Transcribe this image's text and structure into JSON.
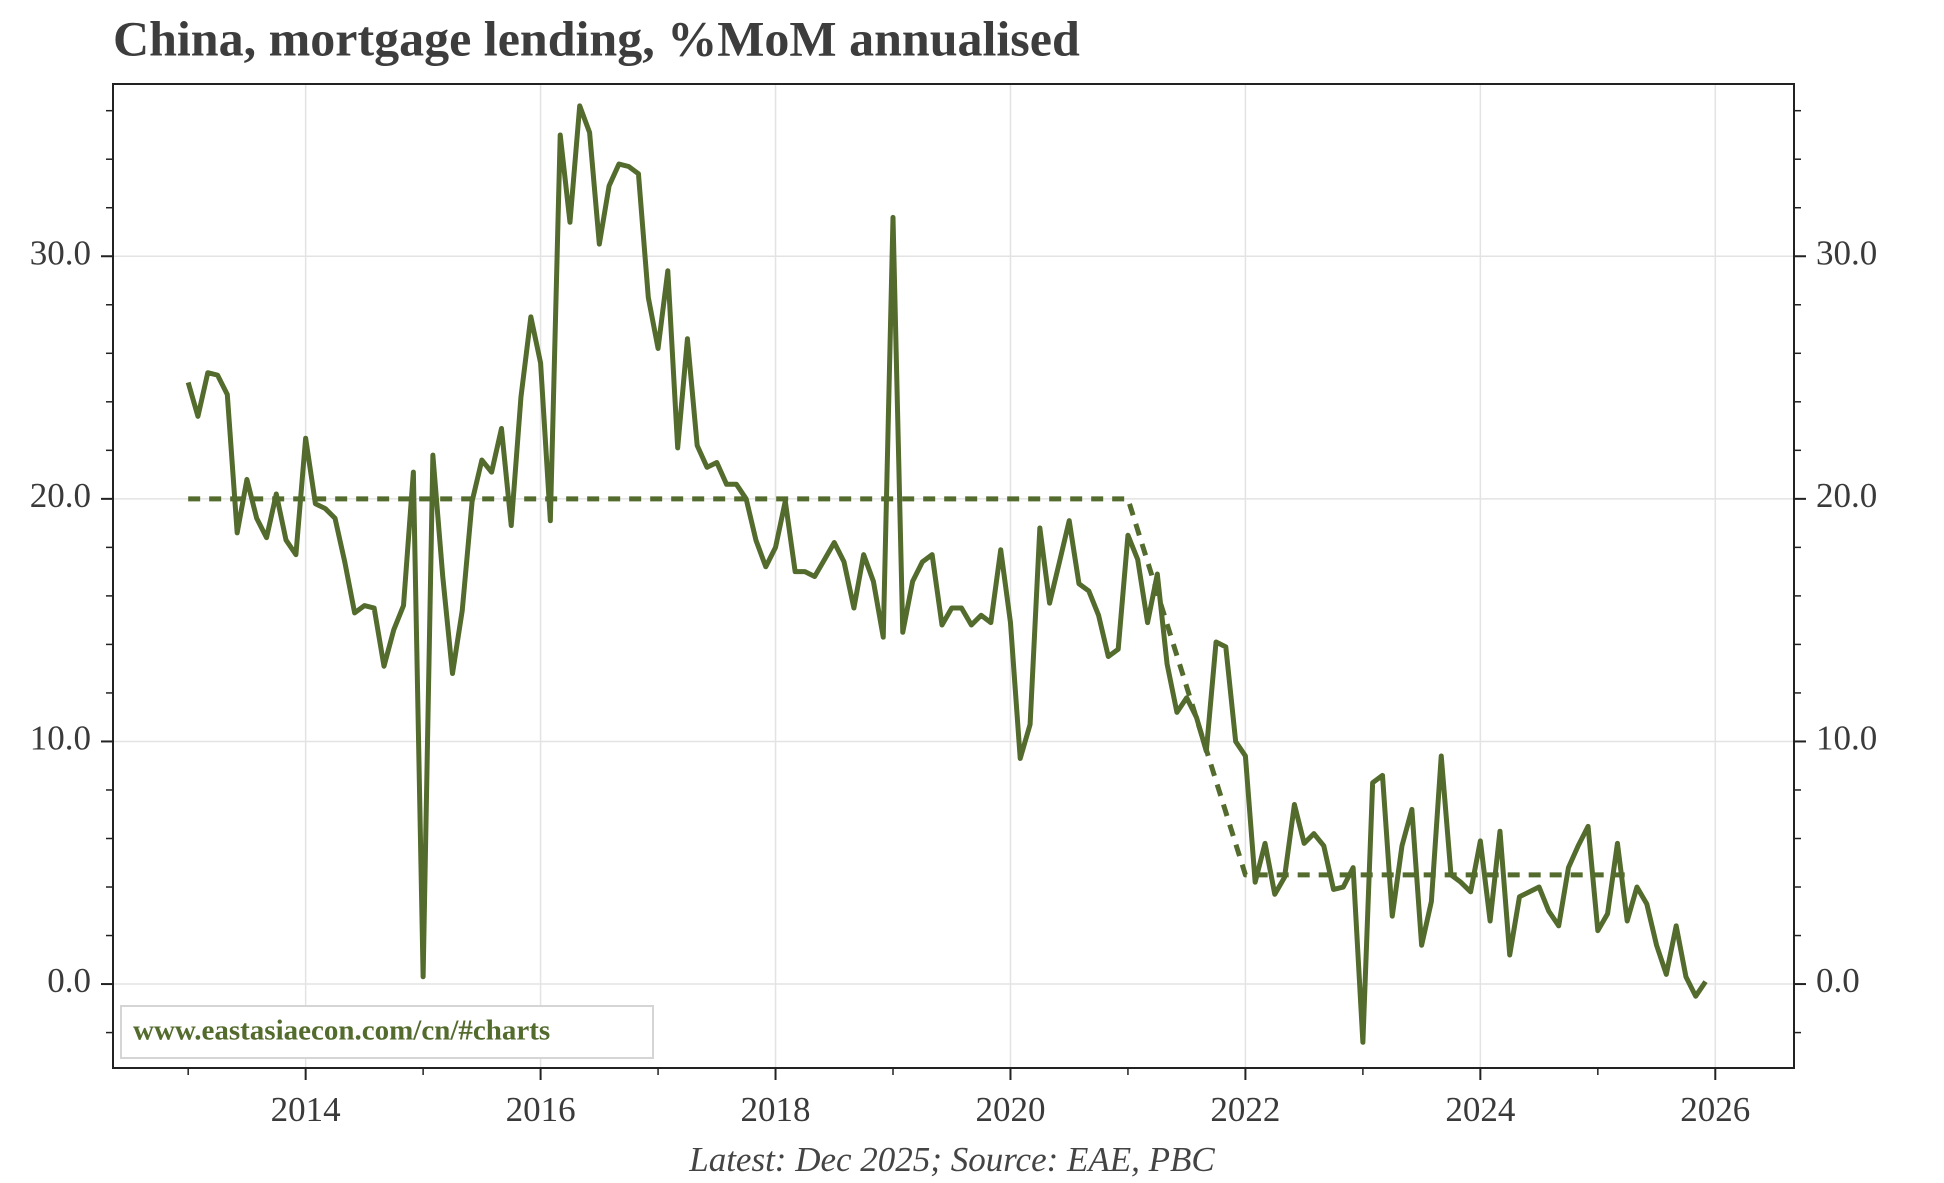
{
  "chart_data": {
    "type": "line",
    "title": "China, mortgage lending, %MoM annualised",
    "footer": "Latest: Dec 2025; Source: EAE, PBC",
    "watermark": "www.eastasiaecon.com/cn/#charts",
    "x": [
      2013,
      2013.083,
      2013.167,
      2013.25,
      2013.333,
      2013.417,
      2013.5,
      2013.583,
      2013.667,
      2013.75,
      2013.833,
      2013.917,
      2014,
      2014.083,
      2014.167,
      2014.25,
      2014.333,
      2014.417,
      2014.5,
      2014.583,
      2014.667,
      2014.75,
      2014.833,
      2014.917,
      2015,
      2015.083,
      2015.167,
      2015.25,
      2015.333,
      2015.417,
      2015.5,
      2015.583,
      2015.667,
      2015.75,
      2015.833,
      2015.917,
      2016,
      2016.083,
      2016.167,
      2016.25,
      2016.333,
      2016.417,
      2016.5,
      2016.583,
      2016.667,
      2016.75,
      2016.833,
      2016.917,
      2017,
      2017.083,
      2017.167,
      2017.25,
      2017.333,
      2017.417,
      2017.5,
      2017.583,
      2017.667,
      2017.75,
      2017.833,
      2017.917,
      2018,
      2018.083,
      2018.167,
      2018.25,
      2018.333,
      2018.417,
      2018.5,
      2018.583,
      2018.667,
      2018.75,
      2018.833,
      2018.917,
      2019,
      2019.083,
      2019.167,
      2019.25,
      2019.333,
      2019.417,
      2019.5,
      2019.583,
      2019.667,
      2019.75,
      2019.833,
      2019.917,
      2020,
      2020.083,
      2020.167,
      2020.25,
      2020.333,
      2020.417,
      2020.5,
      2020.583,
      2020.667,
      2020.75,
      2020.833,
      2020.917,
      2021,
      2021.083,
      2021.167,
      2021.25,
      2021.333,
      2021.417,
      2021.5,
      2021.583,
      2021.667,
      2021.75,
      2021.833,
      2021.917,
      2022,
      2022.083,
      2022.167,
      2022.25,
      2022.333,
      2022.417,
      2022.5,
      2022.583,
      2022.667,
      2022.75,
      2022.833,
      2022.917,
      2023,
      2023.083,
      2023.167,
      2023.25,
      2023.333,
      2023.417,
      2023.5,
      2023.583,
      2023.667,
      2023.75,
      2023.833,
      2023.917,
      2024,
      2024.083,
      2024.167,
      2024.25,
      2024.333,
      2024.417,
      2024.5,
      2024.583,
      2024.667,
      2024.75,
      2024.833,
      2024.917,
      2025,
      2025.083,
      2025.167,
      2025.25,
      2025.333,
      2025.417,
      2025.5,
      2025.583,
      2025.667,
      2025.75,
      2025.833,
      2025.917
    ],
    "series": [
      {
        "color": "#536b2c",
        "style": "solid",
        "values": [
          24.8,
          23.4,
          25.2,
          25.1,
          24.3,
          18.6,
          20.8,
          19.2,
          18.4,
          20.2,
          18.3,
          17.7,
          22.5,
          19.8,
          19.6,
          19.2,
          17.4,
          15.3,
          15.6,
          15.5,
          13.1,
          14.6,
          15.6,
          21.1,
          0.3,
          21.8,
          16.8,
          12.8,
          15.4,
          19.9,
          21.6,
          21.1,
          22.9,
          18.9,
          24.2,
          27.5,
          25.6,
          19.1,
          35.0,
          31.4,
          36.2,
          35.1,
          30.5,
          32.9,
          33.8,
          33.7,
          33.4,
          28.3,
          26.2,
          29.4,
          22.1,
          26.6,
          22.2,
          21.3,
          21.5,
          20.6,
          20.6,
          20.0,
          18.3,
          17.2,
          18.0,
          19.9,
          17.0,
          17.0,
          16.8,
          17.5,
          18.2,
          17.4,
          15.5,
          17.7,
          16.6,
          14.3,
          31.6,
          14.5,
          16.6,
          17.4,
          17.7,
          14.8,
          15.5,
          15.5,
          14.8,
          15.2,
          14.9,
          17.9,
          14.9,
          9.3,
          10.7,
          18.8,
          15.7,
          17.4,
          19.1,
          16.5,
          16.2,
          15.2,
          13.5,
          13.8,
          18.5,
          17.5,
          14.9,
          16.9,
          13.2,
          11.2,
          11.8,
          11.0,
          9.6,
          14.1,
          13.9,
          10.0,
          9.4,
          4.2,
          5.8,
          3.7,
          4.4,
          7.4,
          5.8,
          6.2,
          5.7,
          3.9,
          4.0,
          4.8,
          -2.4,
          8.3,
          8.6,
          2.8,
          5.7,
          7.2,
          1.6,
          3.4,
          9.4,
          4.5,
          4.2,
          3.8,
          5.9,
          2.6,
          6.3,
          1.2,
          3.6,
          3.8,
          4.0,
          3.0,
          2.4,
          4.8,
          5.7,
          6.5,
          2.2,
          2.9,
          5.8,
          2.6,
          4.0,
          3.3,
          1.6,
          0.4,
          2.4,
          0.3,
          -0.5,
          0.1
        ]
      },
      {
        "color": "#536b2c",
        "style": "dashed",
        "x": [
          2013,
          2021,
          2022,
          2025.25
        ],
        "values": [
          20.0,
          20.0,
          4.5,
          4.5
        ]
      }
    ],
    "xlim": [
      2012.36,
      2026.67
    ],
    "ylim": [
      -3.46,
      37.1
    ],
    "xticks": [
      2014,
      2016,
      2018,
      2020,
      2022,
      2024,
      2026
    ],
    "xminor": [
      2013,
      2015,
      2017,
      2019,
      2021,
      2023,
      2025
    ],
    "yticks": [
      {
        "value": 0,
        "label": "0.0"
      },
      {
        "value": 10,
        "label": "10.0"
      },
      {
        "value": 20,
        "label": "20.0"
      },
      {
        "value": 30,
        "label": "30.0"
      }
    ],
    "yminor": [
      -2,
      2,
      4,
      6,
      8,
      12,
      14,
      16,
      18,
      22,
      24,
      26,
      28,
      32,
      34,
      36
    ],
    "grid": true,
    "mirror_y": true
  }
}
